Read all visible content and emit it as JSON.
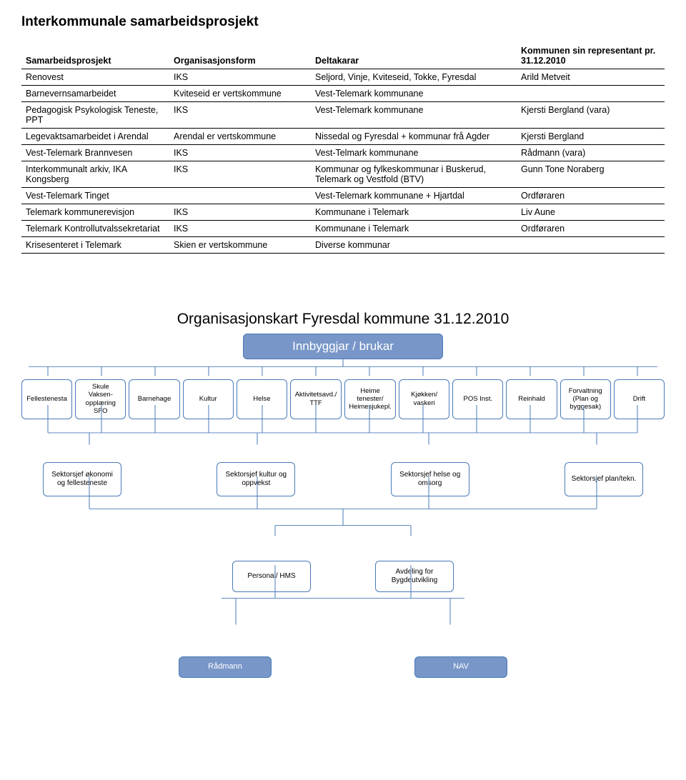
{
  "title_top": "Interkommunale samarbeidsprosjekt",
  "table": {
    "headers": [
      "Samarbeidsprosjekt",
      "Organisasjonsform",
      "Deltakarar",
      "Kommunen sin representant pr. 31.12.2010"
    ],
    "rows": [
      [
        "Renovest",
        "IKS",
        "Seljord, Vinje, Kviteseid, Tokke, Fyresdal",
        "Arild Metveit"
      ],
      [
        "Barnevernsamarbeidet",
        "Kviteseid er vertskommune",
        "Vest-Telemark kommunane",
        ""
      ],
      [
        "Pedagogisk Psykologisk Teneste, PPT",
        "IKS",
        "Vest-Telemark kommunane",
        "Kjersti Bergland (vara)"
      ],
      [
        "Legevaktsamarbeidet i Arendal",
        "Arendal er vertskommune",
        "Nissedal og Fyresdal + kommunar frå Agder",
        "Kjersti Bergland"
      ],
      [
        "Vest-Telemark Brannvesen",
        "IKS",
        "Vest-Telmark kommunane",
        "Rådmann (vara)"
      ],
      [
        "Interkommunalt arkiv, IKA Kongsberg",
        "IKS",
        "Kommunar og fylkeskommunar i Buskerud, Telemark og Vestfold (BTV)",
        "Gunn Tone Noraberg"
      ],
      [
        "Vest-Telemark Tinget",
        "",
        "Vest-Telemark kommunane + Hjartdal",
        "Ordføraren"
      ],
      [
        "Telemark kommunerevisjon",
        "IKS",
        "Kommunane i Telemark",
        "Liv Aune"
      ],
      [
        "Telemark Kontrollutvalssekretariat",
        "IKS",
        "Kommunane i Telemark",
        "Ordføraren"
      ],
      [
        "Krisesenteret i Telemark",
        "Skien er vertskommune",
        "Diverse kommunar",
        ""
      ]
    ]
  },
  "org": {
    "title": "Organisasjonskart Fyresdal kommune 31.12.2010",
    "top": "Innbyggjar / brukar",
    "level1": [
      "Fellestenesta",
      "Skule Vaksen-opplæring SFO",
      "Barnehage",
      "Kultur",
      "Helse",
      "Aktivitetsavd./ TTF",
      "Heime tenester/ Heimesjukepl.",
      "Kjøkken/ vaskeri",
      "POS Inst.",
      "Reinhald",
      "Forvaltning (Plan og byggesak)",
      "Drift"
    ],
    "level2": [
      "Sektorsjef økonomi og fellesteneste",
      "Sektorsjef kultur og oppvekst",
      "Sektorsjef helse og omsorg",
      "Sektorsjef plan/tekn."
    ],
    "level3": [
      "Personal/ HMS",
      "Avdeling for Bygdeutvikling"
    ],
    "level4": [
      "Rådmann",
      "NAV"
    ]
  },
  "colors": {
    "box_border": "#4a7ab8",
    "box_fill_highlight": "#7896c8",
    "text": "#000000",
    "background": "#ffffff"
  }
}
